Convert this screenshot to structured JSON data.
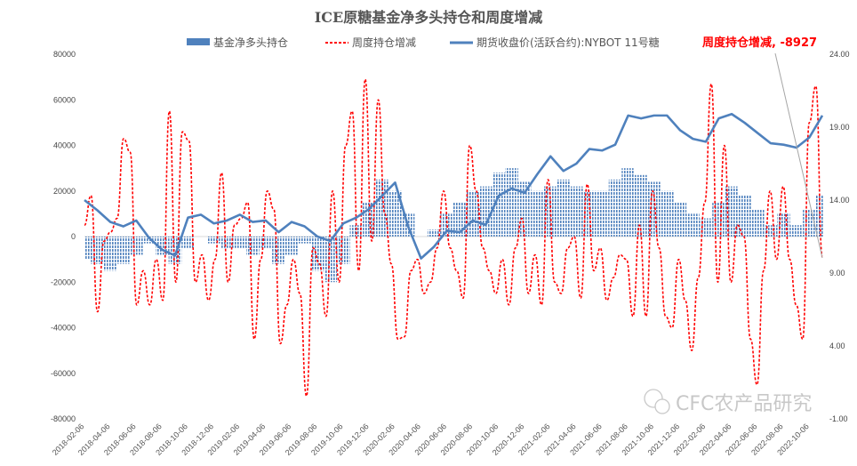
{
  "chart_data": {
    "type": "bar+line",
    "title": "ICE原糖基金净多头持仓和周度增减",
    "legend_position": "top",
    "grid": false,
    "x_tick_labels": [
      "2018-02-06",
      "2018-04-06",
      "2018-06-06",
      "2018-08-06",
      "2018-10-06",
      "2018-12-06",
      "2019-02-06",
      "2019-04-06",
      "2019-06-06",
      "2019-08-06",
      "2019-10-06",
      "2019-12-06",
      "2020-02-06",
      "2020-04-06",
      "2020-06-06",
      "2020-08-06",
      "2020-10-06",
      "2020-12-06",
      "2021-02-06",
      "2021-04-06",
      "2021-06-06",
      "2021-08-06",
      "2021-10-06",
      "2021-12-06",
      "2022-02-06",
      "2022-04-06",
      "2022-06-06",
      "2022-08-06",
      "2022-10-06"
    ],
    "x_range": [
      "2018-02",
      "2022-11"
    ],
    "y_left": {
      "range": [
        -80000,
        80000
      ],
      "ticks": [
        "80000",
        "60000",
        "40000",
        "20000",
        "0",
        "-20000",
        "-40000",
        "-60000",
        "-80000"
      ]
    },
    "y_right": {
      "range": [
        -1,
        24
      ],
      "ticks": [
        "24.00",
        "19.00",
        "14.00",
        "9.00",
        "4.00",
        "-1.00"
      ]
    },
    "series": [
      {
        "name": "基金净多头持仓",
        "type": "bar",
        "axis": "left",
        "color": "#4f81bd",
        "x": [
          "2018-02",
          "2018-03",
          "2018-04",
          "2018-05",
          "2018-06",
          "2018-07",
          "2018-08",
          "2018-09",
          "2018-10",
          "2018-11",
          "2018-12",
          "2019-01",
          "2019-02",
          "2019-03",
          "2019-04",
          "2019-05",
          "2019-06",
          "2019-07",
          "2019-08",
          "2019-09",
          "2019-10",
          "2019-11",
          "2019-12",
          "2020-01",
          "2020-02",
          "2020-03",
          "2020-04",
          "2020-05",
          "2020-06",
          "2020-07",
          "2020-08",
          "2020-09",
          "2020-10",
          "2020-11",
          "2020-12",
          "2021-01",
          "2021-02",
          "2021-03",
          "2021-04",
          "2021-05",
          "2021-06",
          "2021-07",
          "2021-08",
          "2021-09",
          "2021-10",
          "2021-11",
          "2021-12",
          "2022-01",
          "2022-02",
          "2022-03",
          "2022-04",
          "2022-05",
          "2022-06",
          "2022-07",
          "2022-08",
          "2022-09",
          "2022-10",
          "2022-11"
        ],
        "values": [
          -10000,
          -12000,
          -15000,
          -12000,
          -8000,
          -3000,
          -8000,
          -12000,
          -5000,
          0,
          -3000,
          -5000,
          -5000,
          -8000,
          -5000,
          -12000,
          -8000,
          -3000,
          -15000,
          -20000,
          -12000,
          5000,
          15000,
          25000,
          20000,
          10000,
          0,
          3000,
          10000,
          15000,
          20000,
          22000,
          28000,
          30000,
          24000,
          20000,
          22000,
          25000,
          22000,
          20000,
          20000,
          25000,
          30000,
          27000,
          24000,
          20000,
          15000,
          10000,
          8000,
          15000,
          22000,
          18000,
          12000,
          5000,
          10000,
          5000,
          12000,
          18000
        ]
      },
      {
        "name": "周度持仓增减",
        "type": "line",
        "style": "dashed",
        "axis": "left",
        "color": "#ff0000",
        "values": [
          5000,
          18000,
          -33000,
          -2000,
          2000,
          8000,
          43000,
          37000,
          -30000,
          -15000,
          -30000,
          -10000,
          -28000,
          55000,
          -20000,
          46000,
          42000,
          -20000,
          -8000,
          -28000,
          -10000,
          28000,
          -20000,
          5000,
          8000,
          15000,
          -45000,
          -10000,
          20000,
          12000,
          -47000,
          -30000,
          -10000,
          -25000,
          -70000,
          -5000,
          -12000,
          -35000,
          20000,
          -20000,
          40000,
          55000,
          -15000,
          69000,
          -2000,
          60000,
          10000,
          -12000,
          -45000,
          -44000,
          -15000,
          -10000,
          -25000,
          -20000,
          -5000,
          20000,
          -5000,
          -15000,
          -27000,
          40000,
          20000,
          -5000,
          -15000,
          -25000,
          -10000,
          -30000,
          -5000,
          8000,
          -25000,
          -8000,
          -30000,
          25000,
          -20000,
          -25000,
          -5000,
          0,
          -27000,
          23000,
          -15000,
          -5000,
          -28000,
          -18000,
          -8000,
          -10000,
          -35000,
          5000,
          -35000,
          20000,
          -5000,
          -35000,
          -40000,
          -10000,
          -28000,
          -50000,
          -18000,
          15000,
          67000,
          -20000,
          40000,
          -20000,
          5000,
          0,
          -45000,
          -65000,
          -15000,
          20000,
          -10000,
          22000,
          -10000,
          -30000,
          -45000,
          50000,
          66000,
          -8927
        ]
      },
      {
        "name": "期货收盘价(活跃合约):NYBOT 11号糖",
        "type": "line",
        "axis": "right",
        "color": "#4f81bd",
        "values": [
          14.0,
          13.3,
          12.5,
          12.2,
          12.6,
          11.4,
          10.6,
          10.2,
          12.8,
          13.0,
          12.4,
          12.6,
          13.0,
          12.5,
          12.6,
          11.8,
          12.5,
          12.2,
          11.5,
          11.2,
          12.4,
          12.8,
          13.4,
          14.3,
          15.2,
          12.2,
          10.0,
          10.8,
          11.9,
          11.8,
          12.6,
          12.3,
          14.3,
          14.8,
          14.5,
          15.8,
          17.0,
          16.0,
          16.5,
          17.5,
          17.4,
          17.8,
          19.8,
          19.6,
          19.8,
          19.8,
          18.8,
          18.2,
          18.0,
          19.6,
          19.9,
          19.3,
          18.6,
          17.9,
          17.8,
          17.6,
          18.3,
          19.8
        ]
      }
    ],
    "annotation": {
      "text": "周度持仓增减, -8927"
    },
    "watermark": "CFC农产品研究"
  }
}
